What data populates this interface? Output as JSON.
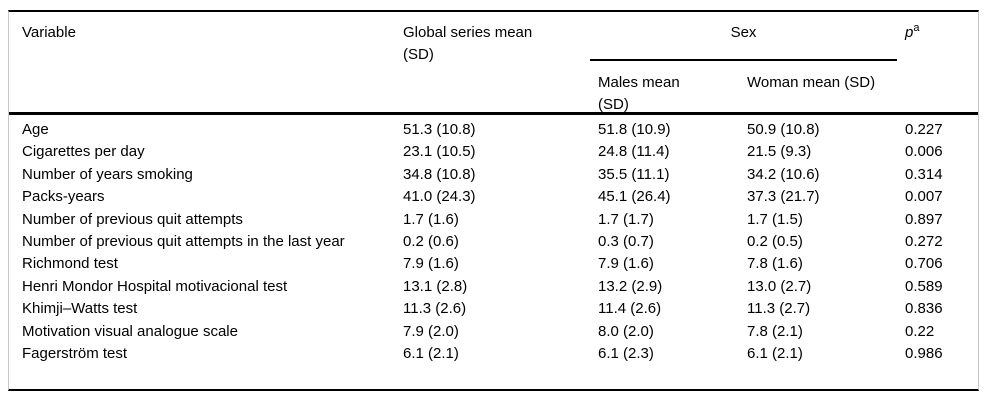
{
  "header": {
    "variable": "Variable",
    "global": "Global series mean (SD)",
    "sex": "Sex",
    "males": "Males mean (SD)",
    "woman": "Woman mean (SD)",
    "p": "p",
    "p_superscript": "a"
  },
  "rows": [
    {
      "variable": "Age",
      "global": "51.3 (10.8)",
      "males": "51.8 (10.9)",
      "woman": "50.9 (10.8)",
      "p": "0.227"
    },
    {
      "variable": "Cigarettes per day",
      "global": "23.1 (10.5)",
      "males": "24.8 (11.4)",
      "woman": "21.5 (9.3)",
      "p": "0.006"
    },
    {
      "variable": "Number of years smoking",
      "global": "34.8 (10.8)",
      "males": "35.5 (11.1)",
      "woman": "34.2 (10.6)",
      "p": "0.314"
    },
    {
      "variable": "Packs-years",
      "global": "41.0 (24.3)",
      "males": "45.1 (26.4)",
      "woman": "37.3 (21.7)",
      "p": "0.007"
    },
    {
      "variable": "Number of previous quit attempts",
      "global": "1.7 (1.6)",
      "males": "1.7 (1.7)",
      "woman": "1.7 (1.5)",
      "p": "0.897"
    },
    {
      "variable": "Number of previous quit attempts in the last year",
      "global": "0.2 (0.6)",
      "males": "0.3 (0.7)",
      "woman": "0.2 (0.5)",
      "p": "0.272"
    },
    {
      "variable": "Richmond test",
      "global": "7.9 (1.6)",
      "males": "7.9 (1.6)",
      "woman": "7.8 (1.6)",
      "p": "0.706"
    },
    {
      "variable": "Henri Mondor Hospital motivacional test",
      "global": "13.1 (2.8)",
      "males": "13.2 (2.9)",
      "woman": "13.0 (2.7)",
      "p": "0.589"
    },
    {
      "variable": "Khimji–Watts test",
      "global": "11.3 (2.6)",
      "males": "11.4 (2.6)",
      "woman": "11.3 (2.7)",
      "p": "0.836"
    },
    {
      "variable": "Motivation visual analogue scale",
      "global": "7.9 (2.0)",
      "males": "8.0 (2.0)",
      "woman": "7.8 (2.1)",
      "p": "0.22"
    },
    {
      "variable": "Fagerström test",
      "global": "6.1 (2.1)",
      "males": "6.1 (2.3)",
      "woman": "6.1 (2.1)",
      "p": "0.986"
    }
  ],
  "colors": {
    "text": "#000000",
    "rule": "#000000",
    "side_border": "#c8c8c8",
    "background": "#ffffff"
  }
}
